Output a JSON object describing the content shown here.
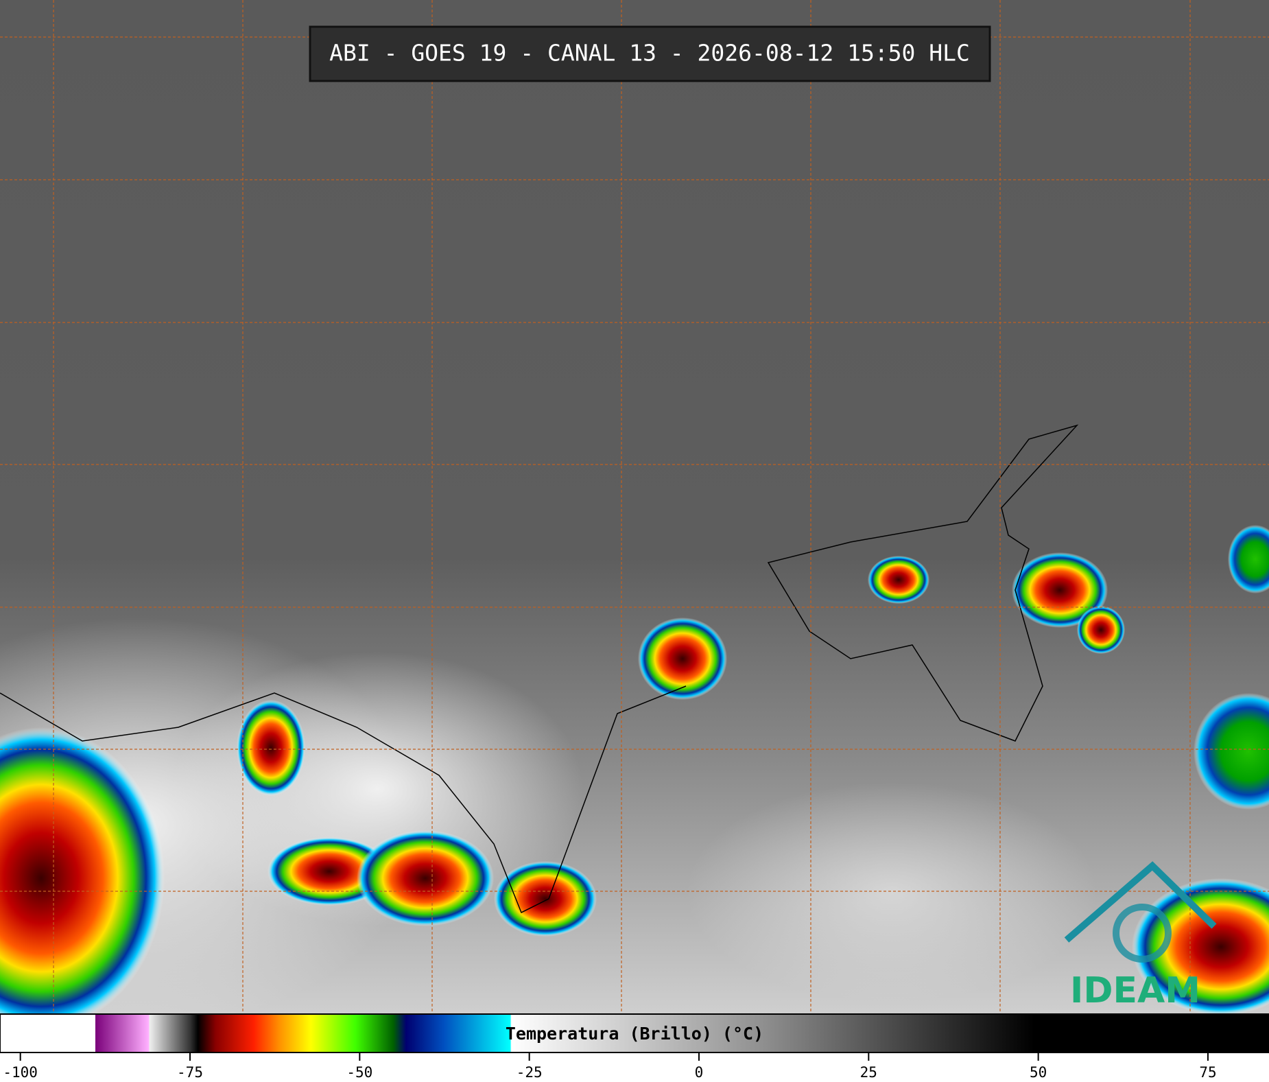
{
  "title": "ABI - GOES 19 - CANAL 13 - 2026-08-12 15:50 HLC",
  "logo": "IDEAM",
  "colorbar": {
    "label": "Temperatura (Brillo) (°C)",
    "xlim": [
      -103,
      84
    ],
    "ticks": [
      -100,
      -75,
      -50,
      -25,
      0,
      25,
      50,
      75
    ]
  }
}
